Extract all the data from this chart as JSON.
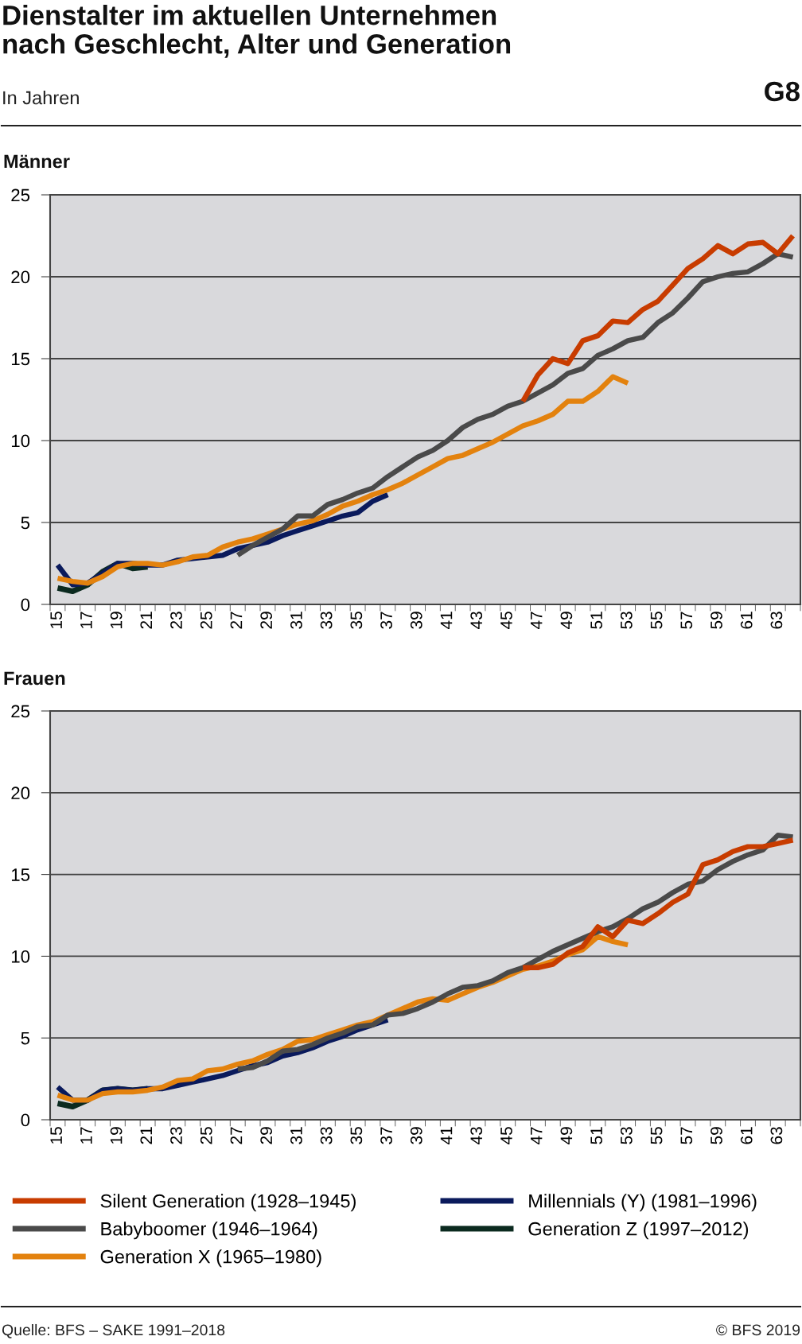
{
  "chart_data": [
    {
      "type": "other",
      "title": "Dienstalter im aktuellen Unternehmen\nnach Geschlecht, Alter und Generation",
      "subtitle": "In Jahren",
      "annotations": [
        "G8"
      ]
    },
    {
      "type": "line",
      "title": "Männer",
      "categories": [
        "15",
        null,
        "17",
        null,
        "19",
        null,
        "21",
        null,
        "23",
        null,
        "25",
        null,
        "27",
        null,
        "29",
        null,
        "31",
        null,
        "33",
        null,
        "35",
        null,
        "37",
        null,
        "39",
        null,
        "41",
        null,
        "43",
        null,
        "45",
        null,
        "47",
        null,
        "49",
        null,
        "51",
        null,
        "53",
        null,
        "55",
        null,
        "57",
        null,
        "59",
        null,
        "61",
        null,
        "63",
        null
      ],
      "ylim": [
        0,
        25
      ],
      "yticks": [
        0,
        5,
        10,
        15,
        20,
        25
      ],
      "grid": "y",
      "legend": false,
      "series": [
        {
          "color": "#c83c00",
          "values": [
            null,
            null,
            null,
            null,
            null,
            null,
            null,
            null,
            null,
            null,
            null,
            null,
            null,
            null,
            null,
            null,
            null,
            null,
            null,
            null,
            null,
            null,
            null,
            null,
            null,
            null,
            null,
            null,
            null,
            null,
            null,
            12.4,
            14.0,
            15.0,
            14.7,
            16.1,
            16.4,
            17.3,
            17.2,
            18.0,
            18.5,
            19.5,
            20.5,
            21.1,
            21.9,
            21.4,
            22.0,
            22.1,
            21.4,
            22.5
          ]
        },
        {
          "color": "#4a4a4a",
          "values": [
            null,
            null,
            null,
            null,
            null,
            null,
            null,
            null,
            null,
            null,
            null,
            null,
            3.0,
            3.6,
            4.1,
            4.6,
            5.4,
            5.4,
            6.1,
            6.4,
            6.8,
            7.1,
            7.8,
            8.4,
            9.0,
            9.4,
            10.0,
            10.8,
            11.3,
            11.6,
            12.1,
            12.4,
            12.9,
            13.4,
            14.1,
            14.4,
            15.2,
            15.6,
            16.1,
            16.3,
            17.2,
            17.8,
            18.7,
            19.7,
            20.0,
            20.2,
            20.3,
            20.8,
            21.4,
            21.2
          ]
        },
        {
          "color": "#e3820e",
          "values": [
            1.6,
            1.4,
            1.3,
            1.7,
            2.3,
            2.5,
            2.5,
            2.4,
            2.6,
            2.9,
            3.0,
            3.5,
            3.8,
            4.0,
            4.3,
            4.6,
            4.9,
            5.1,
            5.5,
            6.0,
            6.3,
            6.7,
            7.0,
            7.4,
            7.9,
            8.4,
            8.9,
            9.1,
            9.5,
            9.9,
            10.4,
            10.9,
            11.2,
            11.6,
            12.4,
            12.4,
            13.0,
            13.9,
            13.5,
            null,
            null,
            null,
            null,
            null,
            null,
            null,
            null,
            null,
            null,
            null
          ]
        },
        {
          "color": "#0a1a5c",
          "values": [
            2.4,
            1.2,
            1.3,
            1.9,
            2.5,
            2.5,
            2.4,
            2.4,
            2.7,
            2.8,
            2.9,
            3.0,
            3.4,
            3.6,
            3.8,
            4.2,
            4.5,
            4.8,
            5.1,
            5.4,
            5.6,
            6.3,
            6.7,
            null,
            null,
            null,
            null,
            null,
            null,
            null,
            null,
            null,
            null,
            null,
            null,
            null,
            null,
            null,
            null,
            null,
            null,
            null,
            null,
            null,
            null,
            null,
            null,
            null,
            null,
            null
          ]
        },
        {
          "color": "#0b2a1f",
          "values": [
            1.0,
            0.8,
            1.2,
            2.0,
            2.5,
            2.2,
            2.3,
            null,
            null,
            null,
            null,
            null,
            null,
            null,
            null,
            null,
            null,
            null,
            null,
            null,
            null,
            null,
            null,
            null,
            null,
            null,
            null,
            null,
            null,
            null,
            null,
            null,
            null,
            null,
            null,
            null,
            null,
            null,
            null,
            null,
            null,
            null,
            null,
            null,
            null,
            null,
            null,
            null,
            null,
            null
          ]
        }
      ]
    },
    {
      "type": "line",
      "title": "Frauen",
      "categories": [
        "15",
        null,
        "17",
        null,
        "19",
        null,
        "21",
        null,
        "23",
        null,
        "25",
        null,
        "27",
        null,
        "29",
        null,
        "31",
        null,
        "33",
        null,
        "35",
        null,
        "37",
        null,
        "39",
        null,
        "41",
        null,
        "43",
        null,
        "45",
        null,
        "47",
        null,
        "49",
        null,
        "51",
        null,
        "53",
        null,
        "55",
        null,
        "57",
        null,
        "59",
        null,
        "61",
        null,
        "63",
        null
      ],
      "ylim": [
        0,
        25
      ],
      "yticks": [
        0,
        5,
        10,
        15,
        20,
        25
      ],
      "grid": "y",
      "legend": "bottom",
      "annotations": [
        "Quelle: BFS – SAKE 1991–2018",
        "© BFS 2019"
      ],
      "series": [
        {
          "name": "Silent Generation (1928–1945)",
          "color": "#c83c00",
          "values": [
            null,
            null,
            null,
            null,
            null,
            null,
            null,
            null,
            null,
            null,
            null,
            null,
            null,
            null,
            null,
            null,
            null,
            null,
            null,
            null,
            null,
            null,
            null,
            null,
            null,
            null,
            null,
            null,
            null,
            null,
            null,
            9.3,
            9.3,
            9.5,
            10.2,
            10.6,
            11.8,
            11.2,
            12.2,
            12.0,
            12.6,
            13.3,
            13.8,
            15.6,
            15.9,
            16.4,
            16.7,
            16.7,
            16.9,
            17.1
          ]
        },
        {
          "name": "Babyboomer (1946–1964)",
          "color": "#4a4a4a",
          "values": [
            null,
            null,
            null,
            null,
            null,
            null,
            null,
            null,
            null,
            null,
            null,
            null,
            3.1,
            3.2,
            3.6,
            4.2,
            4.3,
            4.6,
            5.0,
            5.3,
            5.7,
            5.8,
            6.4,
            6.5,
            6.8,
            7.2,
            7.7,
            8.1,
            8.2,
            8.5,
            9.0,
            9.3,
            9.8,
            10.3,
            10.7,
            11.1,
            11.5,
            11.8,
            12.3,
            12.9,
            13.3,
            13.9,
            14.4,
            14.6,
            15.3,
            15.8,
            16.2,
            16.5,
            17.4,
            17.3
          ]
        },
        {
          "name": "Generation X (1965–1980)",
          "color": "#e3820e",
          "values": [
            1.5,
            1.2,
            1.2,
            1.6,
            1.7,
            1.7,
            1.8,
            2.0,
            2.4,
            2.5,
            3.0,
            3.1,
            3.4,
            3.6,
            4.0,
            4.3,
            4.8,
            4.9,
            5.2,
            5.5,
            5.8,
            6.0,
            6.4,
            6.8,
            7.2,
            7.4,
            7.3,
            7.7,
            8.1,
            8.4,
            8.8,
            9.2,
            9.4,
            9.7,
            10.1,
            10.4,
            11.2,
            10.9,
            10.7,
            null,
            null,
            null,
            null,
            null,
            null,
            null,
            null,
            null,
            null,
            null
          ]
        },
        {
          "name": "Millennials (Y) (1981–1996)",
          "color": "#0a1a5c",
          "values": [
            2.0,
            1.2,
            1.2,
            1.8,
            1.9,
            1.8,
            1.9,
            1.9,
            2.1,
            2.3,
            2.5,
            2.7,
            3.0,
            3.3,
            3.5,
            3.9,
            4.1,
            4.4,
            4.8,
            5.1,
            5.5,
            5.8,
            6.1,
            null,
            null,
            null,
            null,
            null,
            null,
            null,
            null,
            null,
            null,
            null,
            null,
            null,
            null,
            null,
            null,
            null,
            null,
            null,
            null,
            null,
            null,
            null,
            null,
            null,
            null,
            null
          ]
        },
        {
          "name": "Generation Z (1997–2012)",
          "color": "#0b2a1f",
          "values": [
            1.0,
            0.8,
            1.2,
            1.8,
            1.9,
            1.8,
            1.9,
            null,
            null,
            null,
            null,
            null,
            null,
            null,
            null,
            null,
            null,
            null,
            null,
            null,
            null,
            null,
            null,
            null,
            null,
            null,
            null,
            null,
            null,
            null,
            null,
            null,
            null,
            null,
            null,
            null,
            null,
            null,
            null,
            null,
            null,
            null,
            null,
            null,
            null,
            null,
            null,
            null,
            null,
            null
          ]
        }
      ]
    }
  ]
}
